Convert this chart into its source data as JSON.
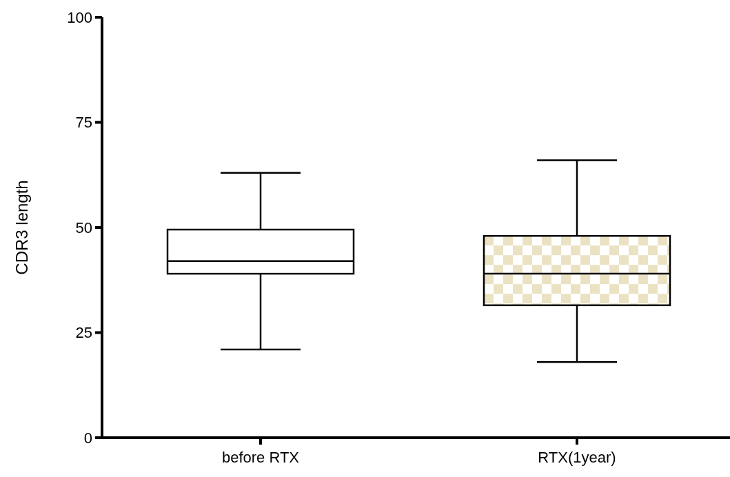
{
  "chart_data": {
    "type": "box",
    "ylabel": "CDR3 length",
    "categories": [
      "before RTX",
      "RTX(1year)"
    ],
    "boxes": [
      {
        "low": 21,
        "q1": 39,
        "median": 42,
        "q3": 49.5,
        "high": 63
      },
      {
        "low": 18,
        "q1": 31.5,
        "median": 39,
        "q3": 48,
        "high": 66
      }
    ],
    "colors": [
      "#ffffff",
      "#ebe2c3"
    ],
    "ylim": [
      0,
      100
    ],
    "yticks": [
      0,
      25,
      50,
      75,
      100
    ],
    "grid": false
  }
}
